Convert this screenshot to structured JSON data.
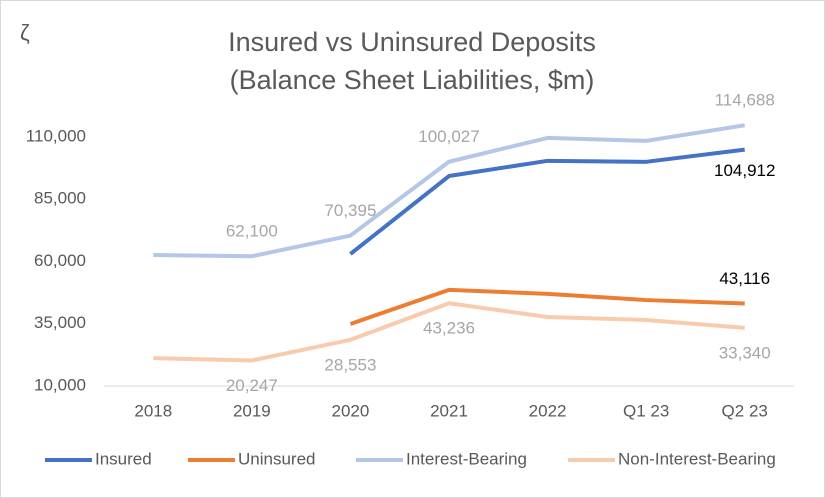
{
  "logo": "ζ",
  "chart_data": {
    "type": "line",
    "title": "Insured vs Uninsured Deposits",
    "subtitle": "(Balance Sheet Liabilities, $m)",
    "categories": [
      "2018",
      "2019",
      "2020",
      "2021",
      "2022",
      "Q1 23",
      "Q2 23"
    ],
    "ylim": [
      10000,
      120000
    ],
    "yticks": [
      {
        "value": 10000,
        "label": "10,000"
      },
      {
        "value": 35000,
        "label": "35,000"
      },
      {
        "value": 60000,
        "label": "60,000"
      },
      {
        "value": 85000,
        "label": "85,000"
      },
      {
        "value": 110000,
        "label": "110,000"
      }
    ],
    "grid": false,
    "legend": "bottom",
    "series": [
      {
        "name": "Insured",
        "color": "#4472c4",
        "values": [
          null,
          null,
          63000,
          94300,
          100400,
          100000,
          104912
        ],
        "value_labels": [
          null,
          null,
          null,
          null,
          null,
          null,
          "104,912"
        ]
      },
      {
        "name": "Uninsured",
        "color": "#ed7d31",
        "values": [
          null,
          null,
          34900,
          48600,
          47000,
          44500,
          43116
        ],
        "value_labels": [
          null,
          null,
          null,
          null,
          null,
          null,
          "43,116"
        ]
      },
      {
        "name": "Interest-Bearing",
        "color": "#b4c7e7",
        "values": [
          62600,
          62100,
          70395,
          100027,
          109600,
          108400,
          114688
        ],
        "value_labels": [
          null,
          "62,100",
          "70,395",
          "100,027",
          null,
          null,
          "114,688"
        ]
      },
      {
        "name": "Non-Interest-Bearing",
        "color": "#f8cbad",
        "values": [
          21200,
          20247,
          28553,
          43236,
          37700,
          36500,
          33340
        ],
        "value_labels": [
          null,
          "20,247",
          "28,553",
          "43,236",
          null,
          null,
          "33,340"
        ]
      }
    ]
  }
}
